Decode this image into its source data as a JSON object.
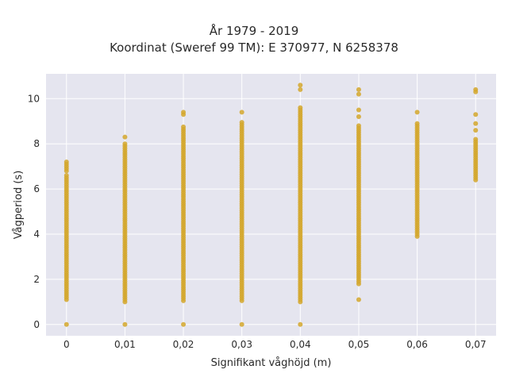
{
  "chart_data": {
    "type": "scatter",
    "title": [
      "År 1979 - 2019",
      "Koordinat (Sweref 99 TM): E 370977, N 6258378"
    ],
    "xlabel": "Signifikant våghöjd (m)",
    "ylabel": "Vågperiod (s)",
    "x_ticks": [
      0,
      0.01,
      0.02,
      0.03,
      0.04,
      0.05,
      0.06,
      0.07
    ],
    "x_tick_labels": [
      "0",
      "0,01",
      "0,02",
      "0,03",
      "0,04",
      "0,05",
      "0,06",
      "0,07"
    ],
    "y_ticks": [
      0,
      2,
      4,
      6,
      8,
      10
    ],
    "y_tick_labels": [
      "0",
      "2",
      "4",
      "6",
      "8",
      "10"
    ],
    "xlim": [
      -0.0035,
      0.0735
    ],
    "ylim": [
      -0.5,
      11.1
    ],
    "grid": true,
    "colors": {
      "marker": "#D4A72C",
      "plot_bg": "#E5E5EF",
      "grid": "#FFFFFF"
    },
    "series": [
      {
        "x": 0,
        "y_range": [
          1.1,
          6.6
        ],
        "y_extra": [
          0,
          6.8,
          6.9,
          7.0,
          7.1,
          7.2
        ]
      },
      {
        "x": 0.01,
        "y_range": [
          1.0,
          8.0
        ],
        "y_extra": [
          0,
          8.3
        ]
      },
      {
        "x": 0.02,
        "y_range": [
          1.05,
          8.75
        ],
        "y_extra": [
          0,
          9.3,
          9.4
        ]
      },
      {
        "x": 0.03,
        "y_range": [
          1.05,
          9.0
        ],
        "y_extra": [
          0,
          9.4
        ]
      },
      {
        "x": 0.04,
        "y_range": [
          1.0,
          9.5
        ],
        "y_extra": [
          0,
          9.6,
          10.4,
          10.6
        ]
      },
      {
        "x": 0.05,
        "y_range": [
          1.8,
          8.8
        ],
        "y_extra": [
          1.1,
          9.2,
          9.5,
          10.2,
          10.4
        ]
      },
      {
        "x": 0.06,
        "y_range": [
          3.9,
          8.9
        ],
        "y_extra": [
          9.4
        ]
      },
      {
        "x": 0.07,
        "y_range": [
          6.4,
          8.2
        ],
        "y_extra": [
          8.6,
          8.9,
          9.3,
          10.3,
          10.4
        ]
      }
    ]
  }
}
